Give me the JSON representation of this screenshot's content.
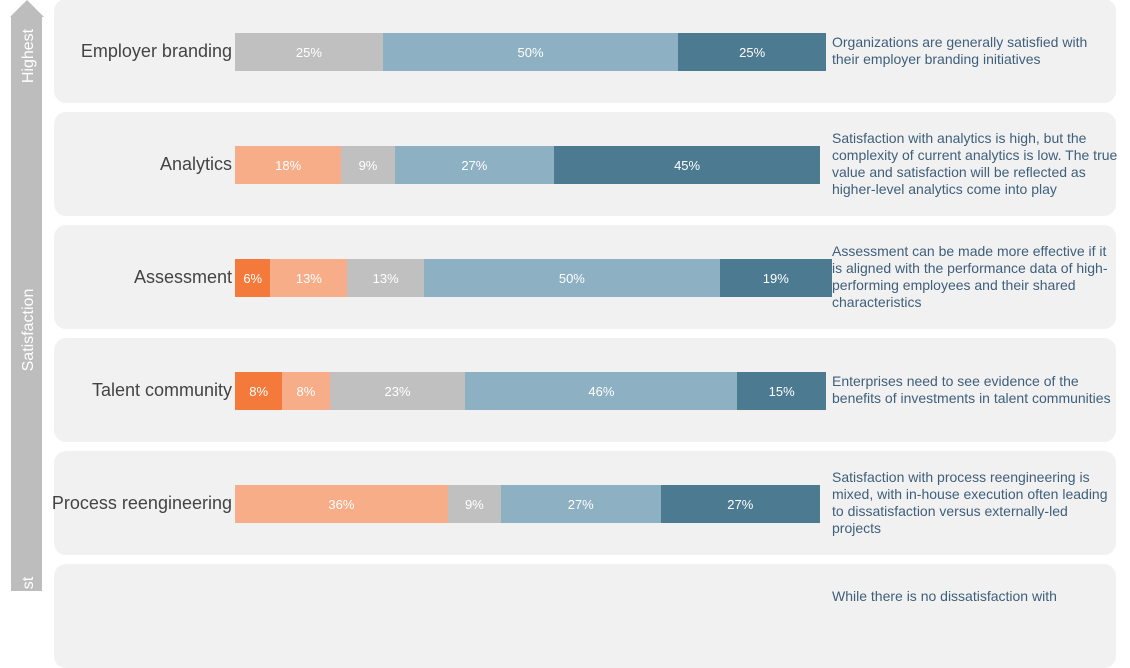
{
  "axis": {
    "title": "Satisfaction",
    "top_label": "Highest",
    "bottom_label": "st"
  },
  "chart_data": {
    "type": "bar",
    "stacked": true,
    "orientation": "horizontal",
    "value_unit": "%",
    "colors": [
      "#f47a3c",
      "#f8ad89",
      "#c0c0c0",
      "#8db0c2",
      "#4c7a90"
    ],
    "categories": [
      "Employer branding",
      "Analytics",
      "Assessment",
      "Talent community",
      "Process reengineering",
      ""
    ],
    "series": [
      {
        "values": [
          0,
          0,
          6,
          8,
          0,
          null
        ]
      },
      {
        "values": [
          0,
          18,
          13,
          8,
          36,
          null
        ]
      },
      {
        "values": [
          25,
          9,
          13,
          23,
          9,
          null
        ]
      },
      {
        "values": [
          50,
          27,
          50,
          46,
          27,
          null
        ]
      },
      {
        "values": [
          25,
          45,
          19,
          15,
          27,
          null
        ]
      }
    ],
    "annotations": [
      "Organizations are generally satisfied with their employer branding initiatives",
      "Satisfaction with analytics is high, but the complexity of current analytics is low. The true value and satisfaction will be reflected as higher-level analytics come into play",
      "Assessment can be made more effective if it is aligned with the performance data of high-performing employees and their shared characteristics",
      "Enterprises need to see evidence of the benefits of investments in talent communities",
      "Satisfaction with process reengineering is mixed, with in-house execution often leading to dissatisfaction versus externally-led projects",
      "While there is no dissatisfaction with"
    ]
  }
}
